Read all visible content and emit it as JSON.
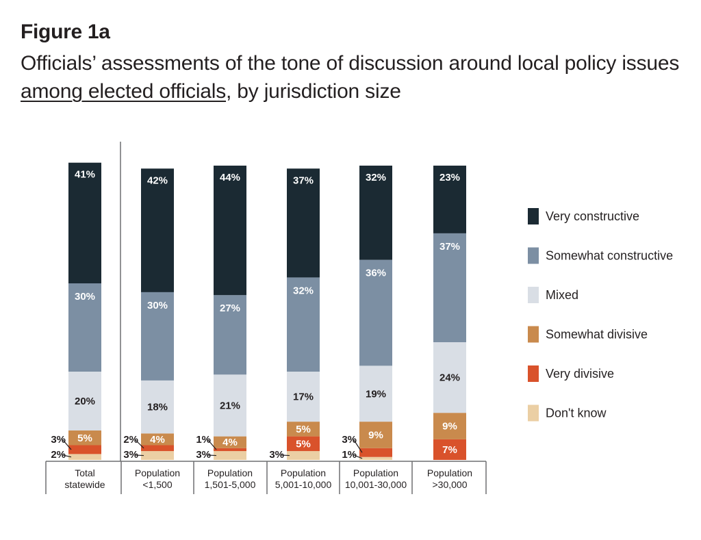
{
  "figure": {
    "label": "Figure 1a",
    "title_pre": "Officials’ assessments of the tone of discussion around local policy issues ",
    "title_underlined": "among elected officials",
    "title_post": ", by jurisdiction size"
  },
  "colors": {
    "very_constructive": "#1b2a33",
    "somewhat_constructive": "#7c8fa3",
    "mixed": "#d9dee5",
    "somewhat_divisive": "#c98a4d",
    "very_divisive": "#d9522b",
    "dont_know": "#ebcfa4"
  },
  "chart_data": {
    "type": "bar",
    "stacked": true,
    "orientation": "vertical",
    "ylim": [
      0,
      100
    ],
    "grid": false,
    "legend_position": "right",
    "categories": [
      [
        "Total",
        "statewide"
      ],
      [
        "Population",
        "<1,500"
      ],
      [
        "Population",
        "1,501-5,000"
      ],
      [
        "Population",
        "5,001-10,000"
      ],
      [
        "Population",
        "10,001-30,000"
      ],
      [
        "Population",
        ">30,000"
      ]
    ],
    "series": [
      {
        "name": "Don't know",
        "color_key": "dont_know",
        "values": [
          2,
          3,
          3,
          3,
          1,
          0
        ],
        "labels": [
          "2%",
          "3%",
          "3%",
          "3%",
          "1%",
          ""
        ]
      },
      {
        "name": "Very divisive",
        "color_key": "very_divisive",
        "values": [
          3,
          2,
          1,
          5,
          3,
          7
        ],
        "labels": [
          "3%",
          "2%",
          "1%",
          "5%",
          "3%",
          "7%"
        ]
      },
      {
        "name": "Somewhat divisive",
        "color_key": "somewhat_divisive",
        "values": [
          5,
          4,
          4,
          5,
          9,
          9
        ],
        "labels": [
          "5%",
          "4%",
          "4%",
          "5%",
          "9%",
          "9%"
        ]
      },
      {
        "name": "Mixed",
        "color_key": "mixed",
        "values": [
          20,
          18,
          21,
          17,
          19,
          24
        ],
        "labels": [
          "20%",
          "18%",
          "21%",
          "17%",
          "19%",
          "24%"
        ]
      },
      {
        "name": "Somewhat constructive",
        "color_key": "somewhat_constructive",
        "values": [
          30,
          30,
          27,
          32,
          36,
          37
        ],
        "labels": [
          "30%",
          "30%",
          "27%",
          "32%",
          "36%",
          "37%"
        ]
      },
      {
        "name": "Very constructive",
        "color_key": "very_constructive",
        "values": [
          41,
          42,
          44,
          37,
          32,
          23
        ],
        "labels": [
          "41%",
          "42%",
          "44%",
          "37%",
          "32%",
          "23%"
        ]
      }
    ]
  }
}
